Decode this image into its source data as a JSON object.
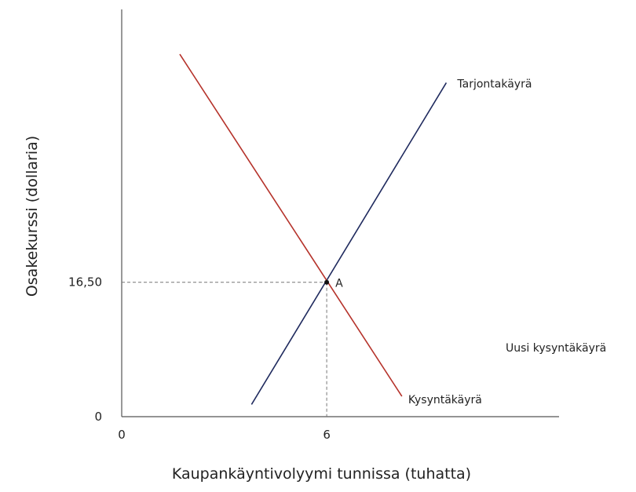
{
  "chart_data": {
    "type": "line",
    "xlabel": "Kaupankäyntivolyymi tunnissa (tuhatta)",
    "ylabel": "Osakekurssi (dollaria)",
    "x_ticks": [
      {
        "value": 0,
        "label": "0"
      },
      {
        "value": 6,
        "label": "6"
      }
    ],
    "y_ticks": [
      {
        "value": 0,
        "label": "0"
      },
      {
        "value": 16.5,
        "label": "16,50"
      }
    ],
    "xlim": [
      0,
      12.8
    ],
    "ylim": [
      0,
      50
    ],
    "grid": false,
    "series": [
      {
        "name": "Tarjontakäyrä",
        "color": "#1f2a5e",
        "points": [
          {
            "x": 3.8,
            "y": 1.5
          },
          {
            "x": 9.5,
            "y": 41.0
          }
        ]
      },
      {
        "name": "Kysyntäkäyrä",
        "color": "#b5322a",
        "points": [
          {
            "x": 1.7,
            "y": 44.5
          },
          {
            "x": 8.2,
            "y": 2.5
          }
        ]
      }
    ],
    "equilibrium": {
      "label": "A",
      "x": 6,
      "y": 16.5
    },
    "annotations": [
      {
        "text": "Uusi kysyntäkäyrä"
      }
    ]
  }
}
